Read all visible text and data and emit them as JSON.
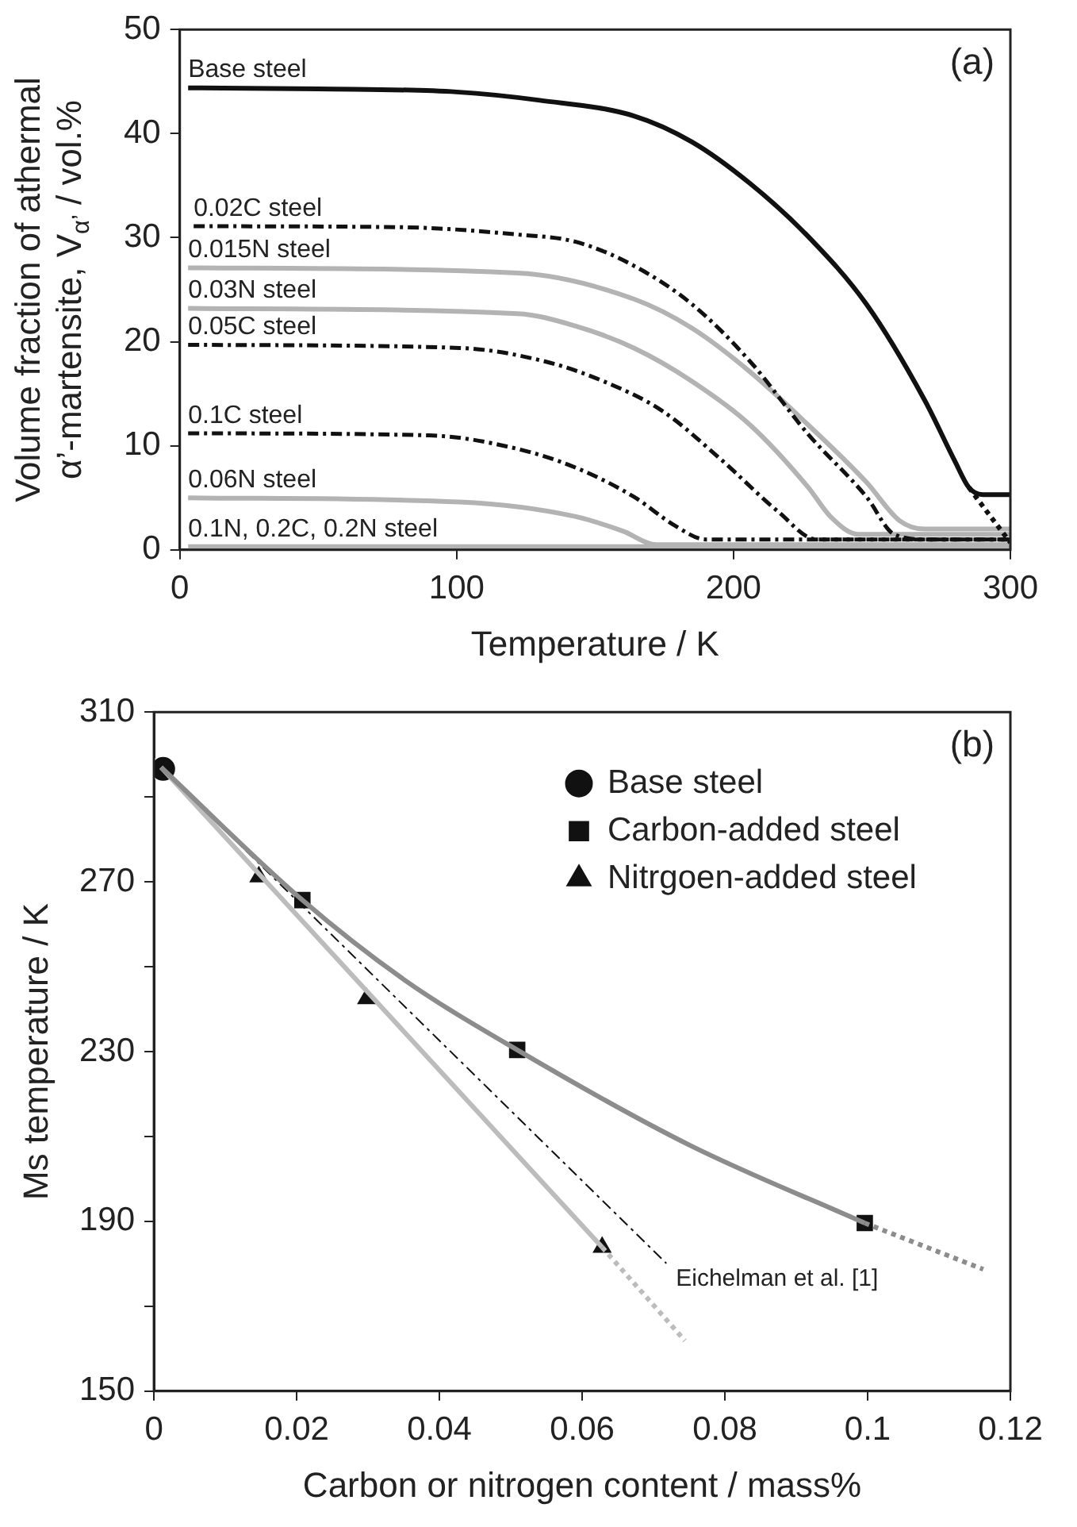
{
  "chart_data": [
    {
      "type": "line",
      "xlabel": "Temperature / K",
      "ylabel": "Volume fraction of athermal\nα’-martensite, V$_{α’}$ / vol.%",
      "xlim": [
        0,
        300
      ],
      "xticks": [
        0,
        100,
        200,
        300
      ],
      "ylim": [
        0,
        50
      ],
      "yticks": [
        0,
        10,
        20,
        30,
        40,
        50
      ],
      "marker": "none",
      "annotations": [
        "(a)"
      ],
      "series": [
        {
          "name": "Base steel",
          "color": "#111111",
          "line_style": "solid",
          "x": [
            3,
            50,
            100,
            130,
            164,
            185,
            206,
            227,
            248,
            269,
            280,
            285,
            290,
            300
          ],
          "values": [
            44.4,
            44.3,
            44.0,
            43.2,
            41.7,
            39.2,
            35.2,
            30.1,
            23.6,
            14.4,
            8.5,
            6.0,
            5.3,
            5.3
          ]
        },
        {
          "color": "#111111",
          "line_style": "dotted",
          "x": [
            285,
            292,
            300
          ],
          "values": [
            6.0,
            3.5,
            0.7
          ]
        },
        {
          "name": "0.02C steel",
          "color": "#111111",
          "line_style": "dashed",
          "x": [
            5,
            80,
            122,
            143,
            164,
            185,
            206,
            227,
            248,
            258,
            270,
            300
          ],
          "values": [
            31.1,
            31.0,
            30.3,
            29.6,
            27.3,
            23.6,
            18.1,
            11.1,
            5.1,
            1.5,
            1.0,
            1.0
          ]
        },
        {
          "name": "0.015N steel",
          "color": "#b3b3b3",
          "line_style": "solid",
          "x": [
            3,
            122,
            164,
            185,
            206,
            227,
            248,
            260,
            269,
            300
          ],
          "values": [
            27.1,
            26.6,
            24.1,
            21.3,
            17.1,
            12.0,
            6.5,
            2.8,
            2.0,
            2.0
          ]
        },
        {
          "name": "0.03N steel",
          "color": "#b3b3b3",
          "line_style": "solid",
          "x": [
            3,
            122,
            143,
            164,
            185,
            206,
            227,
            235,
            245,
            300
          ],
          "values": [
            23.2,
            22.7,
            21.5,
            19.4,
            16.2,
            12.0,
            6.0,
            3.2,
            1.5,
            1.5
          ]
        },
        {
          "name": "0.05C steel",
          "color": "#111111",
          "line_style": "dashed",
          "x": [
            3,
            101,
            132,
            153,
            174,
            195,
            216,
            230,
            300
          ],
          "values": [
            19.7,
            19.4,
            18.1,
            16.2,
            13.4,
            8.8,
            3.7,
            1.0,
            1.0
          ]
        },
        {
          "name": "0.1C steel",
          "color": "#111111",
          "line_style": "dashed",
          "x": [
            3,
            90,
            122,
            143,
            164,
            179,
            190,
            300
          ],
          "values": [
            11.2,
            11.0,
            9.7,
            7.9,
            5.1,
            2.3,
            1.0,
            1.0
          ]
        },
        {
          "name": "0.06N steel",
          "color": "#b3b3b3",
          "line_style": "solid",
          "x": [
            3,
            101,
            143,
            160,
            172,
            300
          ],
          "values": [
            5.0,
            4.6,
            3.2,
            1.8,
            0.5,
            0.5
          ]
        },
        {
          "name": "0.1N, 0.2C, 0.2N steel",
          "color": "#b3b3b3",
          "line_style": "solid",
          "x": [
            3,
            300
          ],
          "values": [
            0.3,
            0.3
          ]
        }
      ]
    },
    {
      "type": "scatter",
      "xlabel": "Carbon or nitrogen content / mass%",
      "ylabel": "Ms temperature / K",
      "xlim": [
        0,
        0.12
      ],
      "xticks": [
        0,
        0.02,
        0.04,
        0.06,
        0.08,
        0.1,
        0.12
      ],
      "ylim": [
        150,
        310
      ],
      "yticks": [
        150,
        {
          "value": 170,
          "label": null
        },
        190,
        {
          "value": 210,
          "label": null
        },
        230,
        {
          "value": 250,
          "label": null
        },
        270,
        {
          "value": 290,
          "label": null
        },
        310
      ],
      "legend": "top right",
      "annotations": [
        "(b)",
        {
          "text": "Eichelman et al. [1]",
          "x": 0.0718,
          "y": 180.1
        }
      ],
      "series": [
        {
          "type": "line",
          "color": "#8c8c8c",
          "line_style": "solid",
          "marker": "none",
          "x": [
            0.001,
            0.0208,
            0.035,
            0.0509,
            0.075,
            0.0996
          ],
          "values": [
            297,
            265.7,
            247,
            230.4,
            208,
            189.6
          ]
        },
        {
          "type": "line",
          "color": "#8c8c8c",
          "line_style": "dotted",
          "marker": "none",
          "x": [
            0.0996,
            0.1162
          ],
          "values": [
            189.6,
            178.7
          ]
        },
        {
          "type": "line",
          "color": "#bcbcbc",
          "line_style": "solid",
          "marker": "none",
          "x": [
            0.001,
            0.0628
          ],
          "values": [
            297,
            183.9
          ]
        },
        {
          "type": "line",
          "color": "#bcbcbc",
          "line_style": "dotted",
          "marker": "none",
          "x": [
            0.0628,
            0.0744
          ],
          "values": [
            183.9,
            161.9
          ]
        },
        {
          "type": "line",
          "color": "#111111",
          "line_style": "dashed",
          "marker": "none",
          "x": [
            0.001,
            0.0718
          ],
          "values": [
            297,
            180.1
          ]
        },
        {
          "name": "Base steel",
          "color": "#111111",
          "marker": "circle",
          "x": [
            0.0013
          ],
          "values": [
            296.6
          ]
        },
        {
          "name": "Carbon-added steel",
          "color": "#111111",
          "marker": "square",
          "x": [
            0.0208,
            0.0509,
            0.0996
          ],
          "values": [
            265.7,
            230.4,
            189.6
          ]
        },
        {
          "name": "Nitrgoen-added steel",
          "color": "#111111",
          "marker": "triangle",
          "x": [
            0.0147,
            0.0298,
            0.0628
          ],
          "values": [
            271.2,
            242.5,
            183.9
          ]
        }
      ]
    }
  ]
}
